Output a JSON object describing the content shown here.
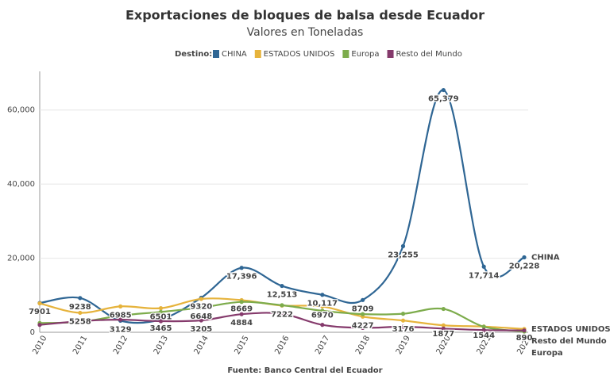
{
  "chart_data": {
    "type": "line",
    "title": "Exportaciones de bloques de balsa desde Ecuador",
    "subtitle": "Valores en Toneladas",
    "legend_title": "Destino:",
    "source": "Fuente: Banco Central del Ecuador",
    "categories": [
      "2010",
      "2011",
      "2012",
      "2013",
      "2014",
      "2015",
      "2016",
      "2017",
      "2018",
      "2019",
      "2020",
      "2021",
      "2022"
    ],
    "series": [
      {
        "name": "CHINA",
        "color": "#2f6694",
        "values": [
          7901,
          9238,
          3129,
          3465,
          9320,
          17396,
          12513,
          10117,
          8709,
          23255,
          65379,
          17714,
          20228
        ],
        "value_labels": [
          "7901",
          "9238",
          "3129",
          "3465",
          "9320",
          "17,396",
          "12,513",
          "10,117",
          "8709",
          "23,255",
          "65,379",
          "17,714",
          "20,228"
        ]
      },
      {
        "name": "ESTADOS UNIDOS",
        "color": "#e6b33c",
        "values": [
          7800,
          5258,
          6985,
          6501,
          9000,
          8669,
          7222,
          6970,
          4227,
          3176,
          1877,
          1544,
          890
        ],
        "value_labels": [
          null,
          "5258",
          "6985",
          "6501",
          null,
          "8669",
          "7222",
          "6970",
          "4227",
          "3176",
          "1877",
          "1544",
          "890"
        ]
      },
      {
        "name": "Europa",
        "color": "#7dac4c",
        "values": [
          2500,
          2800,
          4500,
          5500,
          6648,
          8200,
          7300,
          5800,
          4900,
          5000,
          6300,
          1500,
          200
        ],
        "value_labels": [
          null,
          null,
          null,
          null,
          "6648",
          null,
          null,
          null,
          null,
          null,
          null,
          null,
          null
        ]
      },
      {
        "name": "Resto del Mundo",
        "color": "#853a6c",
        "values": [
          2000,
          3000,
          3400,
          3000,
          3205,
          4884,
          5000,
          2000,
          1200,
          1500,
          1000,
          600,
          500
        ],
        "value_labels": [
          null,
          null,
          null,
          null,
          "3205",
          "4884",
          null,
          null,
          null,
          null,
          null,
          null,
          null
        ]
      }
    ],
    "ylim": [
      0,
      70000
    ],
    "yticks": [
      0,
      {
        "value": 20000,
        "label": "20,000"
      },
      {
        "value": 40000,
        "label": "40,000"
      },
      {
        "value": 60000,
        "label": "60,000"
      }
    ],
    "grid": true
  }
}
